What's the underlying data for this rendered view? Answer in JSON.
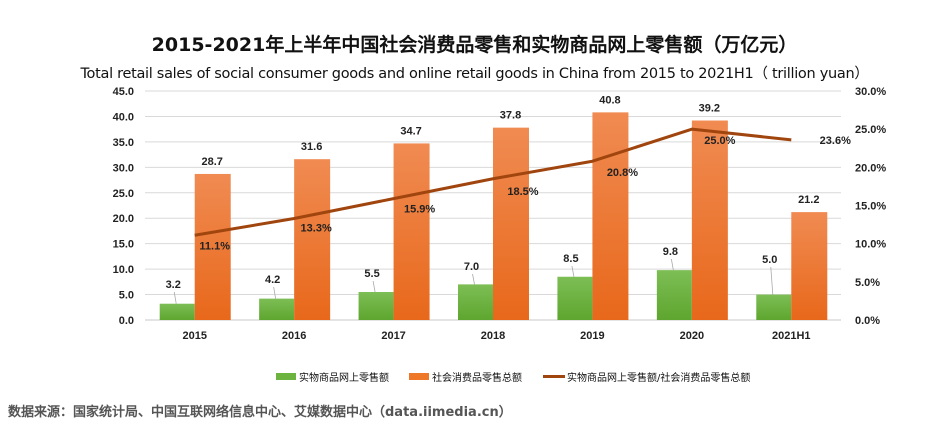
{
  "chart_data": {
    "type": "bar",
    "title": "2015-2021年上半年中国社会消费品零售和实物商品网上零售额（万亿元）",
    "subtitle": "Total retail sales of social consumer goods and online retail goods in China from 2015 to 2021H1（ trillion yuan）",
    "categories": [
      "2015",
      "2016",
      "2017",
      "2018",
      "2019",
      "2020",
      "2021H1"
    ],
    "series": [
      {
        "name": "实物商品网上零售额",
        "kind": "bar",
        "axis": "left",
        "color": "#6db33f",
        "values": [
          3.2,
          4.2,
          5.5,
          7.0,
          8.5,
          9.8,
          5.0
        ],
        "labels": [
          "3.2",
          "4.2",
          "5.5",
          "7.0",
          "8.5",
          "9.8",
          "5.0"
        ]
      },
      {
        "name": "社会消费品零售总额",
        "kind": "bar",
        "axis": "left",
        "color": "#ee7728",
        "values": [
          28.7,
          31.6,
          34.7,
          37.8,
          40.8,
          39.2,
          21.2
        ],
        "labels": [
          "28.7",
          "31.6",
          "34.7",
          "37.8",
          "40.8",
          "39.2",
          "21.2"
        ]
      },
      {
        "name": "实物商品网上零售额/社会消费品零售总额",
        "kind": "line",
        "axis": "right",
        "color": "#a0450e",
        "values": [
          11.1,
          13.3,
          15.9,
          18.5,
          20.8,
          25.0,
          23.6
        ],
        "labels": [
          "11.1%",
          "13.3%",
          "15.9%",
          "18.5%",
          "20.8%",
          "25.0%",
          "23.6%"
        ]
      }
    ],
    "left_axis": {
      "ylim": [
        0,
        45
      ],
      "ticks": [
        "0.0",
        "5.0",
        "10.0",
        "15.0",
        "20.0",
        "25.0",
        "30.0",
        "35.0",
        "40.0",
        "45.0"
      ]
    },
    "right_axis": {
      "ylim": [
        0,
        30
      ],
      "ticks": [
        "0.0%",
        "5.0%",
        "10.0%",
        "15.0%",
        "20.0%",
        "25.0%",
        "30.0%"
      ]
    },
    "grid": true,
    "legend_position": "bottom"
  },
  "legend": [
    {
      "label": "实物商品网上零售额",
      "color": "#6db33f"
    },
    {
      "label": "社会消费品零售总额",
      "color": "#ee7728"
    },
    {
      "label": "实物商品网上零售额/社会消费品零售总额",
      "color": "#a0450e"
    }
  ],
  "source": "数据来源：国家统计局、中国互联网络信息中心、艾媒数据中心（data.iimedia.cn）"
}
